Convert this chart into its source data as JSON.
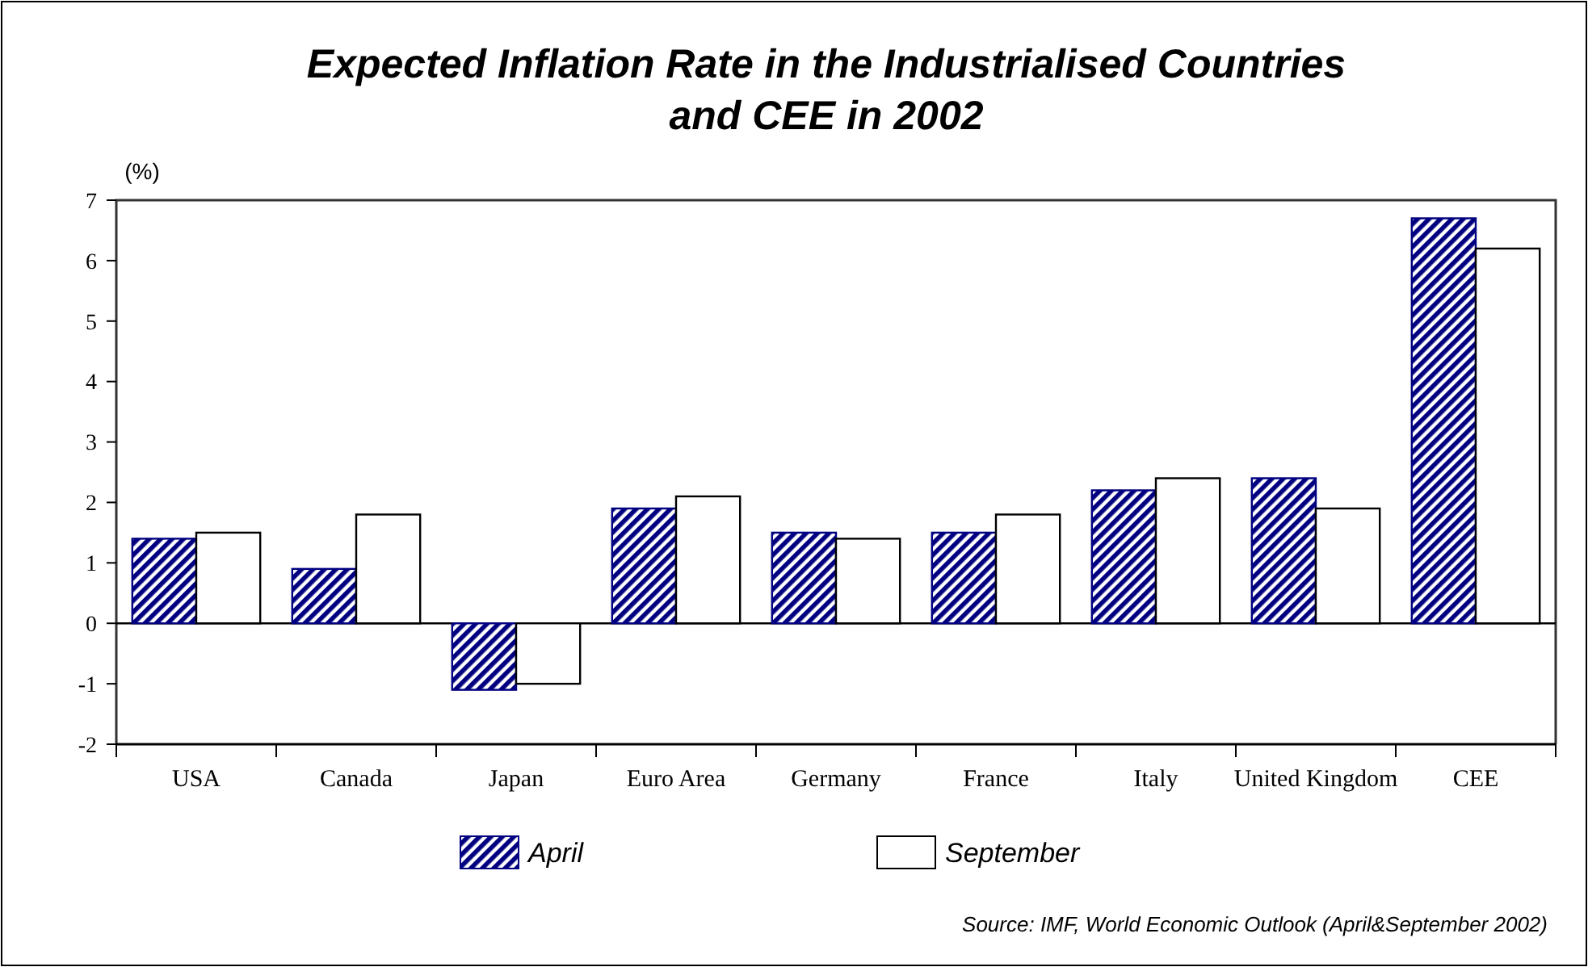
{
  "chart_data": {
    "type": "bar",
    "title": "Expected Inflation Rate in the Industrialised Countries and CEE in 2002",
    "ylabel": "(%)",
    "categories": [
      "USA",
      "Canada",
      "Japan",
      "Euro Area",
      "Germany",
      "France",
      "Italy",
      "United Kingdom",
      "CEE"
    ],
    "series": [
      {
        "name": "April",
        "color": "#000080",
        "values": [
          1.4,
          0.9,
          -1.1,
          1.9,
          1.5,
          1.5,
          2.2,
          2.4,
          6.7
        ]
      },
      {
        "name": "September",
        "color": "#ffffff",
        "values": [
          1.5,
          1.8,
          -1.0,
          2.1,
          1.4,
          1.8,
          2.4,
          1.9,
          6.2
        ]
      }
    ],
    "ylim": [
      -2,
      7
    ],
    "yticks": [
      -2,
      -1,
      0,
      1,
      2,
      3,
      4,
      5,
      6,
      7
    ],
    "legend": "bottom",
    "annotations": [
      "Source: IMF, World Economic Outlook (April&September 2002)"
    ]
  }
}
